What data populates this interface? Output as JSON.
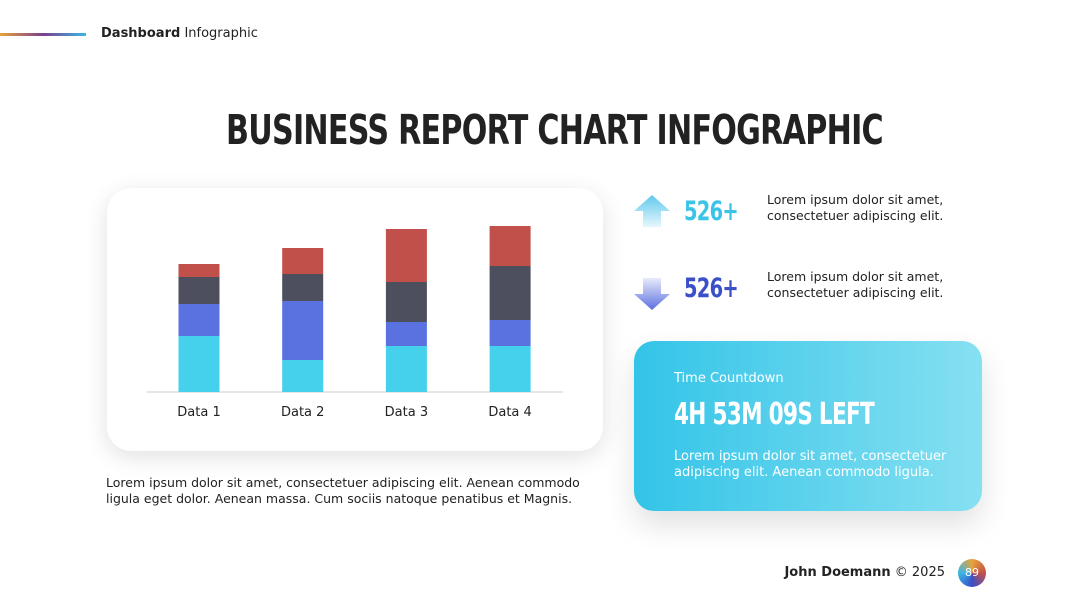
{
  "header": {
    "brand_bold": "Dashboard",
    "brand": "Infographic"
  },
  "title": "BUSINESS REPORT CHART INFOGRAPHIC",
  "chart_data": {
    "type": "stacked-bar",
    "categories": [
      "Data 1",
      "Data 2",
      "Data 3",
      "Data 4"
    ],
    "series": [
      {
        "color": "#45d0ec",
        "values": [
          56,
          32,
          46,
          46
        ]
      },
      {
        "color": "#5a72e0",
        "values": [
          32,
          59,
          24,
          26
        ]
      },
      {
        "color": "#4d4f5e",
        "values": [
          27,
          27,
          40,
          54
        ]
      },
      {
        "color": "#c2504a",
        "values": [
          13,
          26,
          53,
          40
        ]
      }
    ]
  },
  "chart_note": "Lorem ipsum dolor sit amet, consectetuer adipiscing elit. Aenean commodo ligula eget dolor. Aenean massa. Cum sociis natoque penatibus et Magnis.",
  "stats": [
    {
      "value": "526+",
      "text": "Lorem ipsum dolor sit amet, consectetuer adipiscing elit."
    },
    {
      "value": "526+",
      "text": "Lorem ipsum dolor sit amet, consectetuer adipiscing elit."
    }
  ],
  "countdown": {
    "label": "Time Countdown",
    "value": "4H 53M 09S LEFT",
    "text": "Lorem ipsum dolor sit amet, consectetuer adipiscing elit. Aenean commodo ligula."
  },
  "footer": {
    "author": "John Doemann",
    "copyright": "© 2025",
    "page": "89"
  }
}
